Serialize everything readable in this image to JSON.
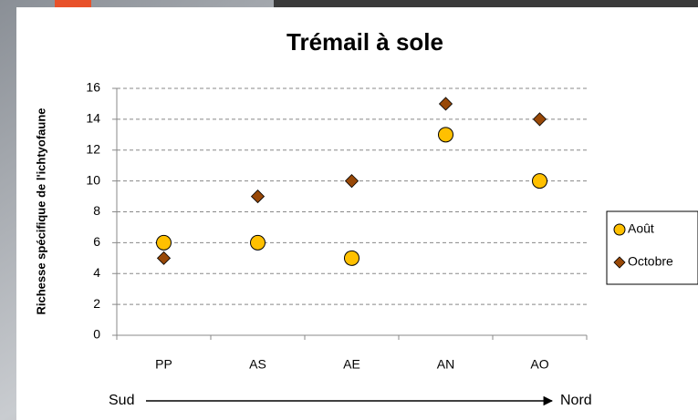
{
  "chart_data": {
    "type": "scatter",
    "title": "Trémail à sole",
    "y_label": "Richesse spécifique de l'ichtyofaune",
    "categories": [
      "PP",
      "AS",
      "AE",
      "AN",
      "AO"
    ],
    "series": [
      {
        "name": "Août",
        "color": "#ffc000",
        "marker": "circle",
        "values": [
          6,
          6,
          5,
          13,
          10
        ]
      },
      {
        "name": "Octobre",
        "color": "#984807",
        "marker": "diamond",
        "values": [
          5,
          9,
          10,
          15,
          14
        ]
      }
    ],
    "ylim": [
      0,
      16
    ],
    "yticks": [
      0,
      2,
      4,
      6,
      8,
      10,
      12,
      14,
      16
    ],
    "grid": true,
    "legend": "right",
    "annotations": [
      "Sud",
      "Nord"
    ]
  }
}
